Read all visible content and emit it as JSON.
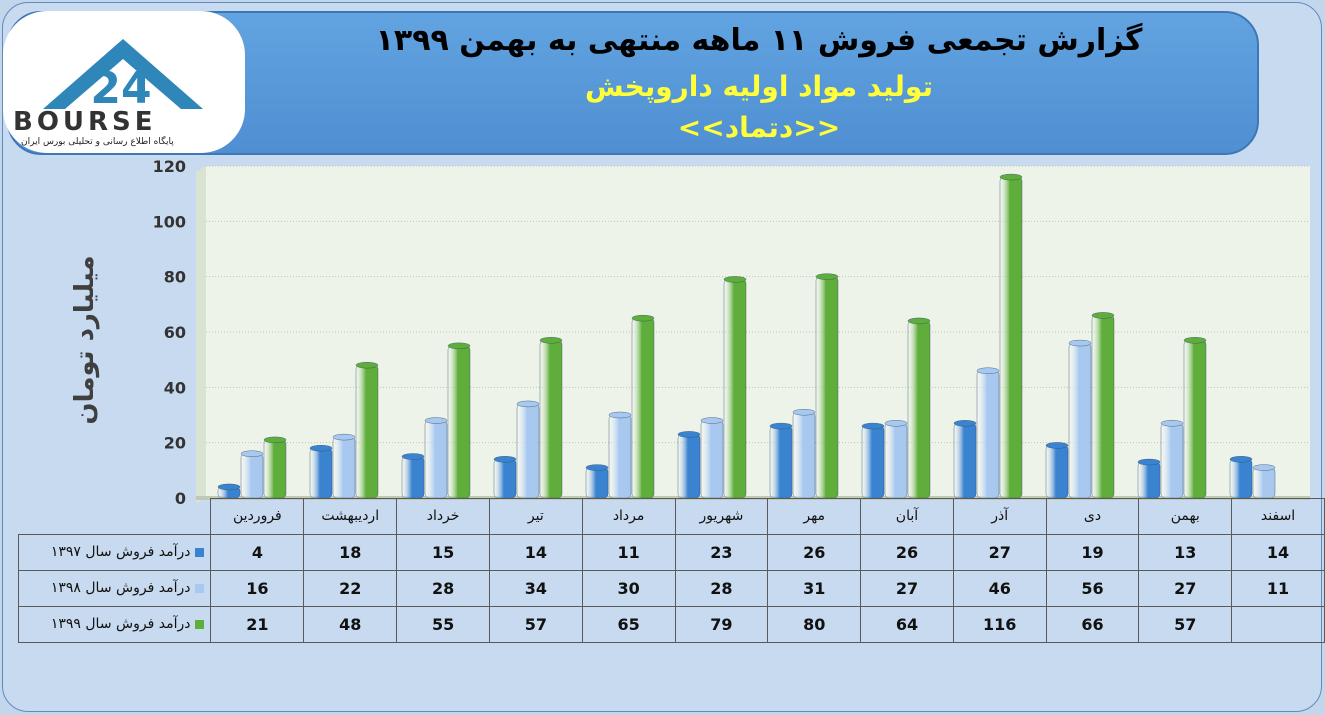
{
  "header": {
    "title_line1": "گزارش تجمعی فروش ۱۱ ماهه منتهی به بهمن ۱۳۹۹",
    "title_line2": "تولید مواد اولیه داروپخش",
    "title_line3": "<<دتماد>>"
  },
  "logo": {
    "word": "BOURSE",
    "tagline": "پایگاه اطلاع رسانی و تحلیلی بورس ایران"
  },
  "chart_data": {
    "type": "bar",
    "categories": [
      "اسفند",
      "بهمن",
      "دی",
      "آذر",
      "آبان",
      "مهر",
      "شهریور",
      "مرداد",
      "تیر",
      "خرداد",
      "اردیبهشت",
      "فروردین"
    ],
    "category_order_in_image": "right-to-left",
    "ylabel": "میلیارد تومان",
    "ylim": [
      0,
      120
    ],
    "yticks": [
      0,
      20,
      40,
      60,
      80,
      100,
      120
    ],
    "grid": true,
    "chart_style": "3d-cylinder",
    "legend_placement": "left-of-data-table",
    "series": [
      {
        "name": "درآمد فروش سال ۱۳۹۷",
        "color": "#3a83d0",
        "values": [
          14,
          13,
          19,
          27,
          26,
          26,
          23,
          11,
          14,
          15,
          18,
          4
        ]
      },
      {
        "name": "درآمد فروش سال ۱۳۹۸",
        "color": "#a8c8ef",
        "values": [
          11,
          27,
          56,
          46,
          27,
          31,
          28,
          30,
          34,
          28,
          22,
          16
        ]
      },
      {
        "name": "درآمد فروش سال ۱۳۹۹",
        "color": "#5fad3a",
        "values": [
          null,
          57,
          66,
          116,
          64,
          80,
          79,
          65,
          57,
          55,
          48,
          21
        ]
      }
    ]
  }
}
